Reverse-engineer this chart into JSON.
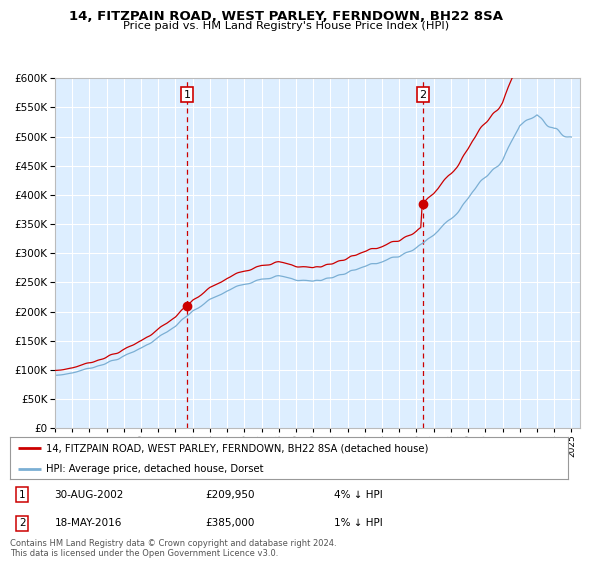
{
  "title": "14, FITZPAIN ROAD, WEST PARLEY, FERNDOWN, BH22 8SA",
  "subtitle": "Price paid vs. HM Land Registry's House Price Index (HPI)",
  "legend_line1": "14, FITZPAIN ROAD, WEST PARLEY, FERNDOWN, BH22 8SA (detached house)",
  "legend_line2": "HPI: Average price, detached house, Dorset",
  "marker1_date": "30-AUG-2002",
  "marker1_price": 209950,
  "marker1_label": "4% ↓ HPI",
  "marker2_date": "18-MAY-2016",
  "marker2_price": 385000,
  "marker2_label": "1% ↓ HPI",
  "footer": "Contains HM Land Registry data © Crown copyright and database right 2024.\nThis data is licensed under the Open Government Licence v3.0.",
  "price_color": "#cc0000",
  "hpi_color": "#7bafd4",
  "background_color": "#ddeeff",
  "ylim_min": 0,
  "ylim_max": 600000,
  "start_year": 1995,
  "end_year": 2025,
  "hpi_annual": [
    90000,
    95000,
    103000,
    112000,
    123000,
    138000,
    155000,
    175000,
    200000,
    220000,
    235000,
    248000,
    258000,
    260000,
    255000,
    252000,
    258000,
    268000,
    278000,
    285000,
    295000,
    310000,
    330000,
    360000,
    395000,
    430000,
    460000,
    520000,
    540000,
    510000,
    500000
  ],
  "sale1_year": 2002.667,
  "sale2_year": 2016.375
}
